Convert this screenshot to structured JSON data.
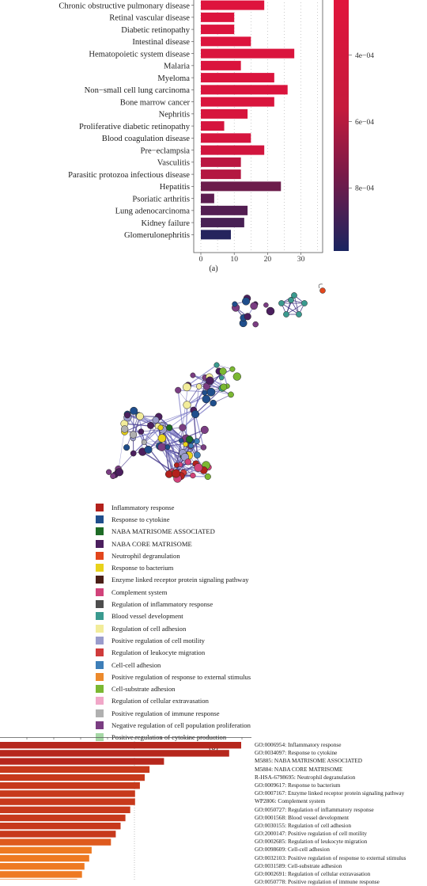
{
  "panel_a": {
    "label": "(a)",
    "colorbar_ticks": [
      "4e−04",
      "6e−04",
      "8e−04"
    ],
    "colors": {
      "high": "#e3143c",
      "mid": "#7a1a48",
      "low": "#1a2560"
    }
  },
  "panel_b": {
    "label": "(b)",
    "legend": [
      {
        "label": "Inflammatory response",
        "color": "#b3211c"
      },
      {
        "label": "Response to cytokine",
        "color": "#1f4e8c"
      },
      {
        "label": "NABA MATRISOME ASSOCIATED",
        "color": "#1e6b26"
      },
      {
        "label": "NABA CORE MATRISOME",
        "color": "#4b1f5e"
      },
      {
        "label": "Neutrophil degranulation",
        "color": "#e2461d"
      },
      {
        "label": "Response to bacterium",
        "color": "#e8d21a"
      },
      {
        "label": "Enzyme linked receptor protein signaling pathway",
        "color": "#4a1e16"
      },
      {
        "label": "Complement system",
        "color": "#d1437a"
      },
      {
        "label": "Regulation of inflammatory response",
        "color": "#4d4d4d"
      },
      {
        "label": "Blood vessel development",
        "color": "#3a9a8f"
      },
      {
        "label": "Regulation of cell adhesion",
        "color": "#f2ec9a"
      },
      {
        "label": "Positive regulation of cell motility",
        "color": "#9a9ccc"
      },
      {
        "label": "Regulation of leukocyte migration",
        "color": "#cf3b3b"
      },
      {
        "label": "Cell-cell adhesion",
        "color": "#3d7eb8"
      },
      {
        "label": "Positive regulation of response to external stimulus",
        "color": "#ec8a2c"
      },
      {
        "label": "Cell-substrate adhesion",
        "color": "#7bb832"
      },
      {
        "label": "Regulation of cellular extravasation",
        "color": "#f1a7c8"
      },
      {
        "label": "Positive regulation of immune response",
        "color": "#b0b0b0"
      },
      {
        "label": "Negative regulation of cell population proliferation",
        "color": "#7a3d82"
      },
      {
        "label": "Positive regulation of cytokine production",
        "color": "#a6d9a6"
      }
    ]
  },
  "panel_c": {
    "terms": [
      "GO:0006954: Inflammatory response",
      "GO:0034097: Response to cytokine",
      "M5885: NABA MATRISOME ASSOCIATED",
      "M5884: NABA CORE MATRISOME",
      "R-HSA-6798695: Neutrophil degranulation",
      "GO:0009617: Response to bacterium",
      "GO:0007167: Enzyme linked receptor protein signaling pathway",
      "WP2806: Complement system",
      "GO:0050727: Regulation of inflammatory response",
      "GO:0001568: Blood vessel development",
      "GO:0030155: Regulation of cell adhesion",
      "GO:2000147: Positive regulation of cell motility",
      "GO:0002685: Regulation of leukocyte migration",
      "GO:0098609: Cell-cell adhesion",
      "GO:0032103: Positive regulation of response to external stimulus",
      "GO:0031589: Cell-substrate adhesion",
      "GO:0002691: Regulation of cellular extravasation",
      "GO:0050778: Positive regulation of immune response"
    ],
    "bar_colors": [
      "#b6271d",
      "#c7391c",
      "#de5a1e",
      "#ee7a22"
    ]
  },
  "chart_data": [
    {
      "type": "bar",
      "orientation": "horizontal",
      "categories": [
        "Chronic obstructive pulmonary disease",
        "Retinal vascular disease",
        "Diabetic retinopathy",
        "Intestinal disease",
        "Hematopoietic system disease",
        "Malaria",
        "Myeloma",
        "Non−small cell lung carcinoma",
        "Bone marrow cancer",
        "Nephritis",
        "Proliferative diabetic retinopathy",
        "Blood coagulation disease",
        "Pre−eclampsia",
        "Vasculitis",
        "Parasitic protozoa infectious disease",
        "Hepatitis",
        "Psoriatic arthritis",
        "Lung adenocarcinoma",
        "Kidney failure",
        "Glomerulonephritis"
      ],
      "values": [
        19,
        10,
        10,
        15,
        28,
        12,
        22,
        26,
        22,
        14,
        7,
        15,
        19,
        12,
        12,
        24,
        4,
        14,
        13,
        9
      ],
      "color_values": [
        0.00027,
        0.00029,
        0.00029,
        0.00029,
        0.0003,
        0.0003,
        0.0003,
        0.0003,
        0.00031,
        0.00032,
        0.00033,
        0.00033,
        0.00035,
        0.00045,
        0.00047,
        0.00069,
        0.00075,
        0.00078,
        0.00082,
        0.00095
      ],
      "xlim": [
        -2.5,
        37
      ],
      "xticks": [
        0,
        10,
        20,
        30
      ],
      "colorbar": {
        "ticks": [
          0.0004,
          0.0006,
          0.0008
        ],
        "range": [
          0.00021,
          0.00099
        ]
      },
      "grid": true
    },
    {
      "type": "bar",
      "orientation": "horizontal",
      "categories": [
        "GO:0006954: Inflammatory response",
        "GO:0034097: Response to cytokine",
        "M5885: NABA MATRISOME ASSOCIATED",
        "M5884: NABA CORE MATRISOME",
        "R-HSA-6798695: Neutrophil degranulation",
        "GO:0009617: Response to bacterium",
        "GO:0007167: Enzyme linked receptor protein signaling pathway",
        "WP2806: Complement system",
        "GO:0050727: Regulation of inflammatory response",
        "GO:0001568: Blood vessel development",
        "GO:0030155: Regulation of cell adhesion",
        "GO:2000147: Positive regulation of cell motility",
        "GO:0002685: Regulation of leukocyte migration",
        "GO:0098609: Cell-cell adhesion",
        "GO:0032103: Positive regulation of response to external stimulus",
        "GO:0031589: Cell-substrate adhesion",
        "GO:0002691: Regulation of cellular extravasation",
        "GO:0050778: Positive regulation of immune response"
      ],
      "values": [
        100,
        95,
        68,
        62,
        60,
        58,
        56,
        56,
        54,
        52,
        50,
        48,
        46,
        38,
        37,
        35,
        34,
        32
      ],
      "color_levels": [
        0,
        0,
        0,
        1,
        1,
        1,
        1,
        1,
        1,
        1,
        1,
        1,
        2,
        3,
        3,
        3,
        3,
        3
      ],
      "grid": true
    }
  ]
}
